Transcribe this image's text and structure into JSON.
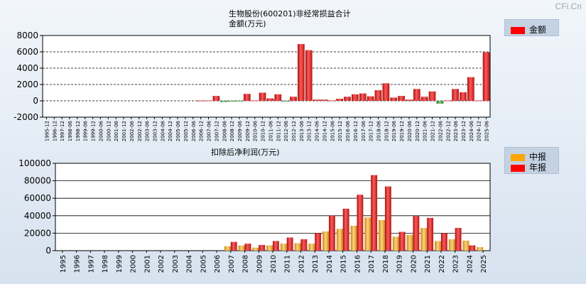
{
  "watermark": "CFi.Cn",
  "chart_data": [
    {
      "type": "bar",
      "title": "生物股份(600201)非经常损益合计",
      "ylabel": "金额(万元)",
      "legend": {
        "label": "金额",
        "color": "#ff0000",
        "position": "top-right"
      },
      "ylim": [
        -2000,
        8000
      ],
      "yticks": [
        -2000,
        0,
        2000,
        4000,
        6000,
        8000
      ],
      "categories": [
        "1995-12",
        "1996-12",
        "1997-12",
        "1998-06",
        "1998-12",
        "1999-06",
        "1999-12",
        "2000-06",
        "2000-12",
        "2001-06",
        "2001-12",
        "2002-06",
        "2002-12",
        "2003-06",
        "2003-12",
        "2004-06",
        "2004-12",
        "2005-06",
        "2005-12",
        "2006-06",
        "2006-12",
        "2007-06",
        "2007-12",
        "2008-06",
        "2008-12",
        "2009-06",
        "2009-12",
        "2010-06",
        "2010-12",
        "2011-06",
        "2011-12",
        "2012-06",
        "2012-12",
        "2013-06",
        "2013-12",
        "2014-06",
        "2014-12",
        "2015-06",
        "2015-12",
        "2016-06",
        "2016-12",
        "2017-06",
        "2017-12",
        "2018-06",
        "2018-12",
        "2019-06",
        "2019-12",
        "2020-06",
        "2020-12",
        "2021-06",
        "2021-12",
        "2022-06",
        "2022-12",
        "2023-06",
        "2023-12",
        "2024-06",
        "2024-12",
        "2025-06"
      ],
      "values": [
        0,
        0,
        0,
        0,
        0,
        0,
        0,
        0,
        0,
        0,
        0,
        0,
        0,
        0,
        0,
        0,
        0,
        0,
        0,
        0,
        30,
        50,
        600,
        -150,
        -100,
        -50,
        850,
        50,
        1000,
        300,
        800,
        -100,
        500,
        6950,
        6200,
        150,
        150,
        50,
        250,
        500,
        800,
        900,
        550,
        1300,
        2150,
        400,
        600,
        150,
        1450,
        500,
        1150,
        -350,
        50,
        1450,
        1050,
        2900,
        50,
        5950
      ]
    },
    {
      "type": "bar",
      "title": "扣除后净利润(万元)",
      "legend": [
        {
          "label": "中报",
          "color": "#ffa500"
        },
        {
          "label": "年报",
          "color": "#ff0000"
        }
      ],
      "legend_position": "top-right",
      "ylim": [
        0,
        100000
      ],
      "yticks": [
        0,
        20000,
        40000,
        60000,
        80000,
        100000
      ],
      "categories": [
        "1995",
        "1996",
        "1997",
        "1998",
        "1999",
        "2000",
        "2001",
        "2002",
        "2003",
        "2004",
        "2005",
        "2006",
        "2007",
        "2008",
        "2009",
        "2010",
        "2011",
        "2012",
        "2013",
        "2014",
        "2015",
        "2016",
        "2017",
        "2018",
        "2019",
        "2020",
        "2021",
        "2022",
        "2023",
        "2024",
        "2025"
      ],
      "series": [
        {
          "name": "中报",
          "values": [
            0,
            0,
            0,
            0,
            0,
            0,
            0,
            0,
            0,
            0,
            0,
            0,
            5000,
            6000,
            3500,
            6000,
            8000,
            8500,
            8000,
            22000,
            25000,
            28500,
            38000,
            35000,
            16000,
            18000,
            26000,
            11000,
            13000,
            11500,
            4000
          ]
        },
        {
          "name": "年报",
          "values": [
            0,
            0,
            0,
            0,
            0,
            0,
            0,
            0,
            0,
            0,
            0,
            0,
            10000,
            8000,
            6500,
            11000,
            15000,
            13000,
            20000,
            40000,
            48000,
            64000,
            86500,
            73500,
            21500,
            39500,
            37500,
            20000,
            26000,
            6000,
            0
          ]
        }
      ]
    }
  ]
}
